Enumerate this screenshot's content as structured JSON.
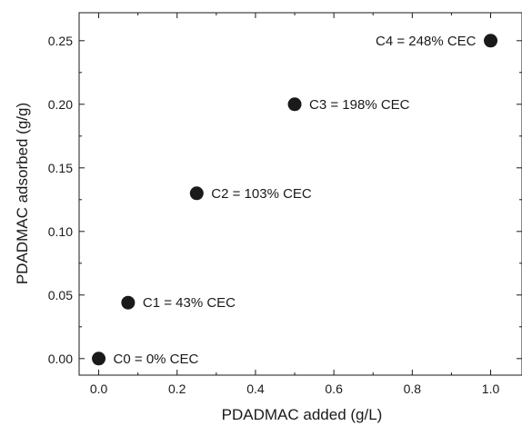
{
  "chart_data": {
    "type": "scatter",
    "title": "",
    "xlabel": "PDADMAC added (g/L)",
    "ylabel": "PDADMAC adsorbed (g/g)",
    "xlim": [
      -0.05,
      1.08
    ],
    "ylim": [
      -0.013,
      0.272
    ],
    "x_ticks": [
      "0.0",
      "0.2",
      "0.4",
      "0.6",
      "0.8",
      "1.0"
    ],
    "y_ticks": [
      "0.00",
      "0.05",
      "0.10",
      "0.15",
      "0.20",
      "0.25"
    ],
    "grid": false,
    "legend": "none",
    "marker_color": "#1a1a1a",
    "points": [
      {
        "x": 0.0,
        "y": 0.0,
        "label": "C0 = 0% CEC",
        "label_side": "right"
      },
      {
        "x": 0.075,
        "y": 0.044,
        "label": "C1 = 43% CEC",
        "label_side": "right"
      },
      {
        "x": 0.25,
        "y": 0.13,
        "label": "C2 = 103% CEC",
        "label_side": "right"
      },
      {
        "x": 0.5,
        "y": 0.2,
        "label": "C3 = 198% CEC",
        "label_side": "right"
      },
      {
        "x": 1.0,
        "y": 0.25,
        "label": "C4 = 248% CEC",
        "label_side": "left"
      }
    ]
  }
}
